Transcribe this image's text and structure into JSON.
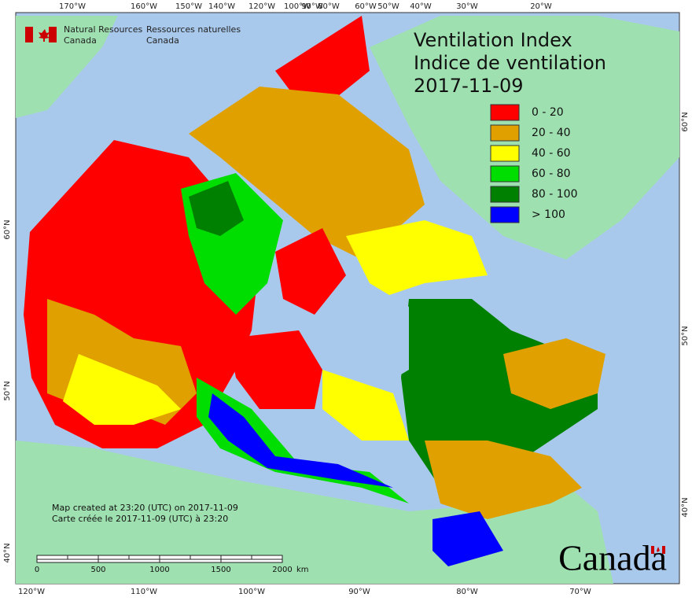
{
  "header": {
    "org_en": [
      "Natural Resources",
      "Canada"
    ],
    "org_fr": [
      "Ressources naturelles",
      "Canada"
    ]
  },
  "title": [
    "Ventilation Index",
    "Indice de ventilation",
    "2017-11-09"
  ],
  "legend": [
    {
      "label": "0 - 20",
      "color": "#ff0000"
    },
    {
      "label": "20 - 40",
      "color": "#e0a000"
    },
    {
      "label": "40 - 60",
      "color": "#ffff00"
    },
    {
      "label": "60 - 80",
      "color": "#00dd00"
    },
    {
      "label": "80 - 100",
      "color": "#008000"
    },
    {
      "label": "> 100",
      "color": "#0000ff"
    }
  ],
  "graticule": {
    "top": [
      "170°W",
      "160°W",
      "150°W",
      "140°W",
      "120°W",
      "100°W",
      "90°W",
      "80°W",
      "60°W",
      "50°W",
      "40°W",
      "30°W",
      "20°W"
    ],
    "bottom": [
      "120°W",
      "110°W",
      "100°W",
      "90°W",
      "80°W",
      "70°W"
    ],
    "left": [
      "60°N",
      "50°N",
      "40°N"
    ],
    "right": [
      "60°N",
      "50°N",
      "40°N"
    ]
  },
  "notes": [
    "Map created at 23:20 (UTC) on 2017-11-09",
    "Carte créée le 2017-11-09 (UTC) à 23:20"
  ],
  "scale_bar": {
    "labels": [
      "0",
      "500",
      "1000",
      "1500",
      "2000"
    ],
    "unit": "km"
  },
  "wordmark": "Canada"
}
